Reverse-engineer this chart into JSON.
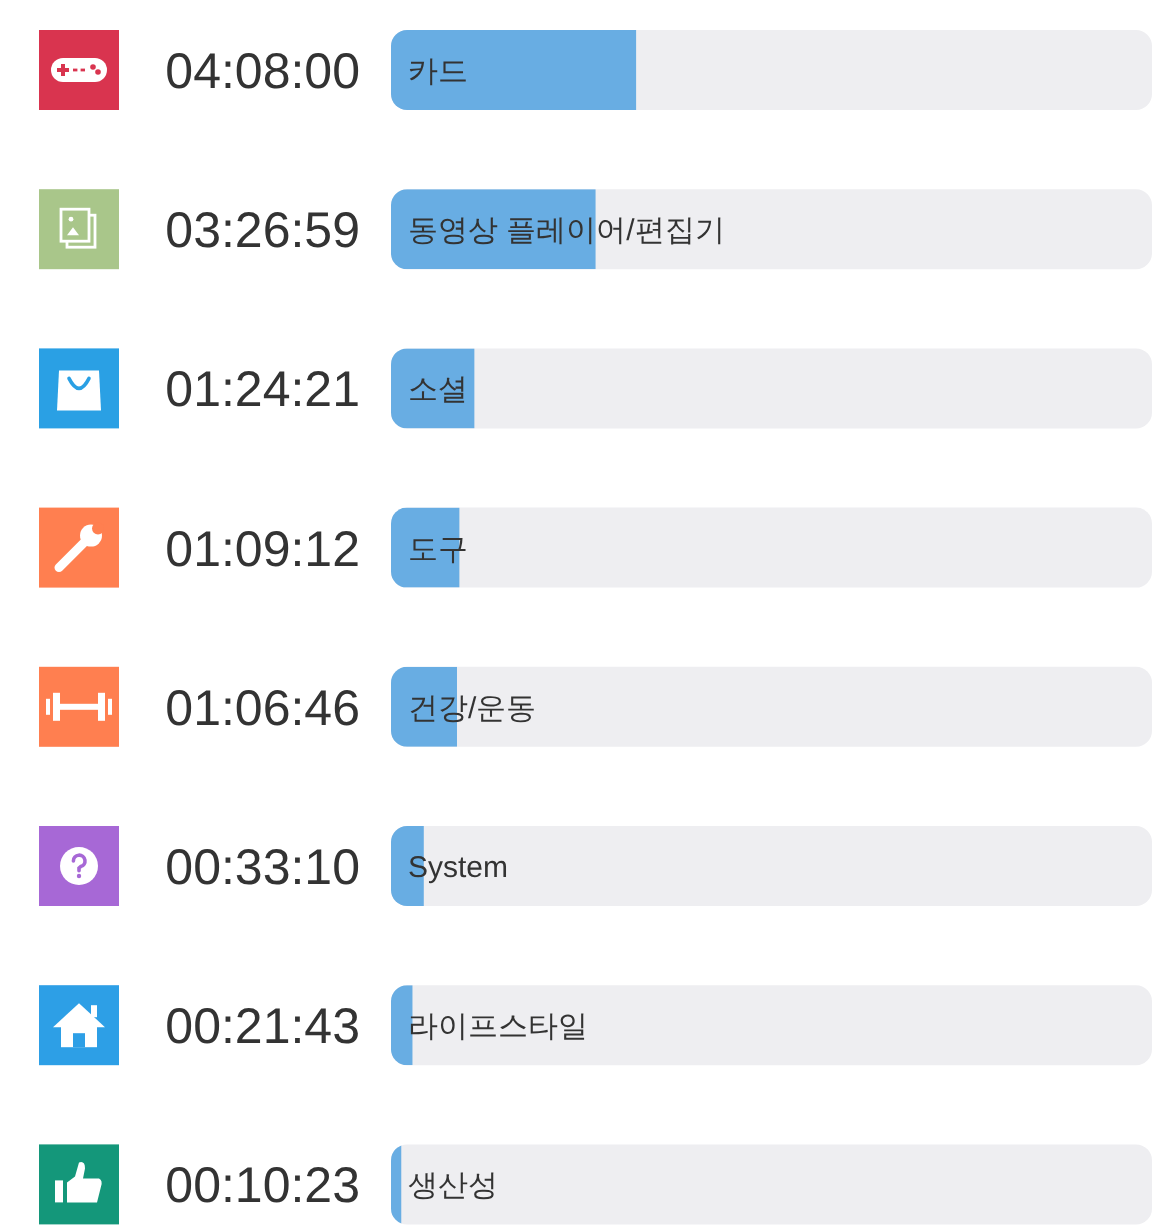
{
  "chart_data": {
    "type": "bar",
    "orientation": "horizontal",
    "categories": [
      "카드",
      "동영상 플레이어/편집기",
      "소셜",
      "도구",
      "건강/운동",
      "System",
      "라이프스타일",
      "생산성"
    ],
    "values": [
      14880,
      12419,
      5061,
      4152,
      4006,
      1990,
      1303,
      623
    ],
    "value_labels": [
      "04:08:00",
      "03:26:59",
      "01:24:21",
      "01:09:12",
      "01:06:46",
      "00:33:10",
      "00:21:43",
      "00:10:23"
    ],
    "color": "#68ade3",
    "xlim": [
      0,
      46200
    ]
  }
}
